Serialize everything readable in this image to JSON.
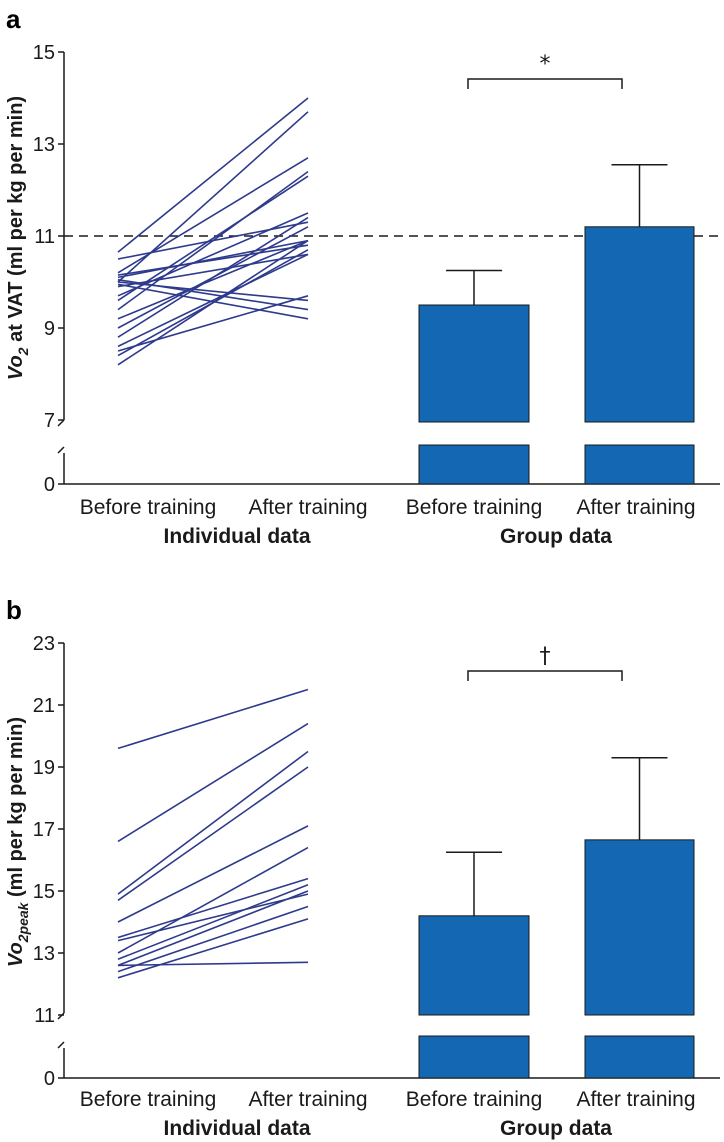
{
  "chart_data": [
    {
      "panel_label": "a",
      "type": "line+bar",
      "y_axis_label": "Vo2 at VAT (ml per kg per min)",
      "y_axis_label_parts": {
        "pre": "Vo",
        "sub": "2",
        "post": " at VAT (ml per kg per min)"
      },
      "ylim_upper": [
        7,
        15
      ],
      "axis_break": [
        0,
        7
      ],
      "yticks": [
        15,
        13,
        11,
        9,
        7,
        0
      ],
      "threshold": 11,
      "categories": [
        "Before training",
        "After training",
        "Before training",
        "After training"
      ],
      "group_labels": [
        "Individual data",
        "Group data"
      ],
      "individual_lines": [
        [
          8.2,
          10.9
        ],
        [
          8.4,
          10.7
        ],
        [
          8.5,
          9.7
        ],
        [
          8.6,
          10.6
        ],
        [
          8.8,
          11.4
        ],
        [
          9.0,
          11.2
        ],
        [
          9.2,
          10.9
        ],
        [
          9.4,
          12.4
        ],
        [
          9.6,
          12.3
        ],
        [
          9.7,
          11.5
        ],
        [
          9.9,
          10.6
        ],
        [
          10.0,
          13.7
        ],
        [
          10.05,
          9.4
        ],
        [
          10.1,
          10.9
        ],
        [
          10.2,
          12.7
        ],
        [
          10.5,
          11.3
        ],
        [
          10.65,
          14.0
        ],
        [
          9.95,
          9.2
        ],
        [
          10.0,
          9.6
        ],
        [
          10.15,
          10.8
        ]
      ],
      "group_bars": [
        {
          "label": "Before training",
          "mean": 9.5,
          "error_upper": 10.25
        },
        {
          "label": "After training",
          "mean": 11.2,
          "error_upper": 12.55
        }
      ],
      "significance": "*"
    },
    {
      "panel_label": "b",
      "type": "line+bar",
      "y_axis_label": "Vo2peak (ml per kg per min)",
      "y_axis_label_parts": {
        "pre": "Vo",
        "sub": "2peak",
        "post": " (ml per kg per min)"
      },
      "ylim_upper": [
        11,
        23
      ],
      "axis_break": [
        0,
        11
      ],
      "yticks": [
        23,
        21,
        19,
        17,
        15,
        13,
        11,
        0
      ],
      "categories": [
        "Before training",
        "After training",
        "Before training",
        "After training"
      ],
      "group_labels": [
        "Individual data",
        "Group data"
      ],
      "individual_lines": [
        [
          19.6,
          21.5
        ],
        [
          16.6,
          20.4
        ],
        [
          14.9,
          19.5
        ],
        [
          14.7,
          19.0
        ],
        [
          14.0,
          17.1
        ],
        [
          13.5,
          15.4
        ],
        [
          13.4,
          14.9
        ],
        [
          13.0,
          16.4
        ],
        [
          12.8,
          15.2
        ],
        [
          12.6,
          15.0
        ],
        [
          12.4,
          14.5
        ],
        [
          12.2,
          14.1
        ],
        [
          12.6,
          12.7
        ]
      ],
      "group_bars": [
        {
          "label": "Before training",
          "mean": 14.2,
          "error_upper": 16.25
        },
        {
          "label": "After training",
          "mean": 16.65,
          "error_upper": 19.3
        }
      ],
      "significance": "†"
    }
  ],
  "colors": {
    "line": "#2e3a8c",
    "bar": "#1467b3",
    "axis": "#1a1a1a"
  }
}
